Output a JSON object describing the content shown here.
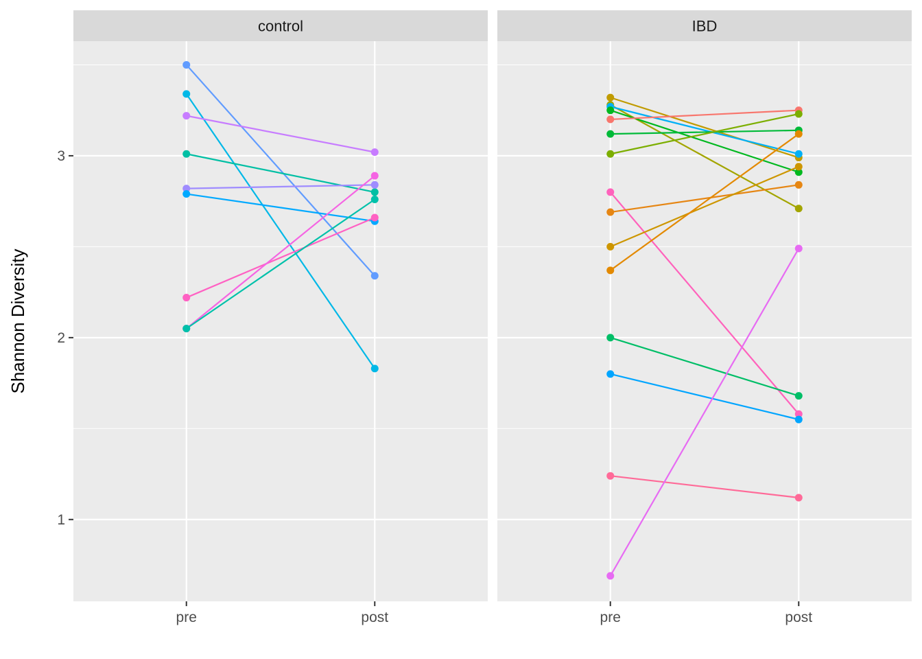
{
  "chart_data": {
    "type": "line",
    "ylabel": "Shannon Diversity",
    "xlabel": "",
    "x_categories": [
      "pre",
      "post"
    ],
    "y_ticks": [
      1,
      2,
      3
    ],
    "ylim": [
      0.55,
      3.63
    ],
    "panels": [
      {
        "title": "control",
        "series": [
          {
            "color": "#619CFF",
            "values": [
              3.5,
              2.34
            ]
          },
          {
            "color": "#00B8E7",
            "values": [
              3.34,
              1.83
            ]
          },
          {
            "color": "#C77CFF",
            "values": [
              3.22,
              3.02
            ]
          },
          {
            "color": "#00BFA4",
            "values": [
              3.01,
              2.8
            ]
          },
          {
            "color": "#9F8CFF",
            "values": [
              2.82,
              2.84
            ]
          },
          {
            "color": "#00A9FF",
            "values": [
              2.79,
              2.64
            ]
          },
          {
            "color": "#FF61C3",
            "values": [
              2.22,
              2.66
            ]
          },
          {
            "color": "#F564E3",
            "values": [
              2.05,
              2.89
            ]
          },
          {
            "color": "#00C1AA",
            "values": [
              2.05,
              2.76
            ]
          }
        ]
      },
      {
        "title": "IBD",
        "series": [
          {
            "color": "#C09B00",
            "values": [
              3.32,
              2.99
            ]
          },
          {
            "color": "#A3A500",
            "values": [
              3.28,
              2.71
            ]
          },
          {
            "color": "#00B0F6",
            "values": [
              3.27,
              3.01
            ]
          },
          {
            "color": "#00B81F",
            "values": [
              3.25,
              2.91
            ]
          },
          {
            "color": "#F8766D",
            "values": [
              3.2,
              3.25
            ]
          },
          {
            "color": "#00BA38",
            "values": [
              3.12,
              3.14
            ]
          },
          {
            "color": "#7CAE00",
            "values": [
              3.01,
              3.23
            ]
          },
          {
            "color": "#FF62BC",
            "values": [
              2.8,
              1.58
            ]
          },
          {
            "color": "#E68613",
            "values": [
              2.69,
              2.84
            ]
          },
          {
            "color": "#CD9600",
            "values": [
              2.5,
              2.94
            ]
          },
          {
            "color": "#E38900",
            "values": [
              2.37,
              3.12
            ]
          },
          {
            "color": "#00BE67",
            "values": [
              2.0,
              1.68
            ]
          },
          {
            "color": "#00A5FF",
            "values": [
              1.8,
              1.55
            ]
          },
          {
            "color": "#FF6A98",
            "values": [
              1.24,
              1.12
            ]
          },
          {
            "color": "#E76BF3",
            "values": [
              0.69,
              2.49
            ]
          }
        ]
      }
    ]
  }
}
